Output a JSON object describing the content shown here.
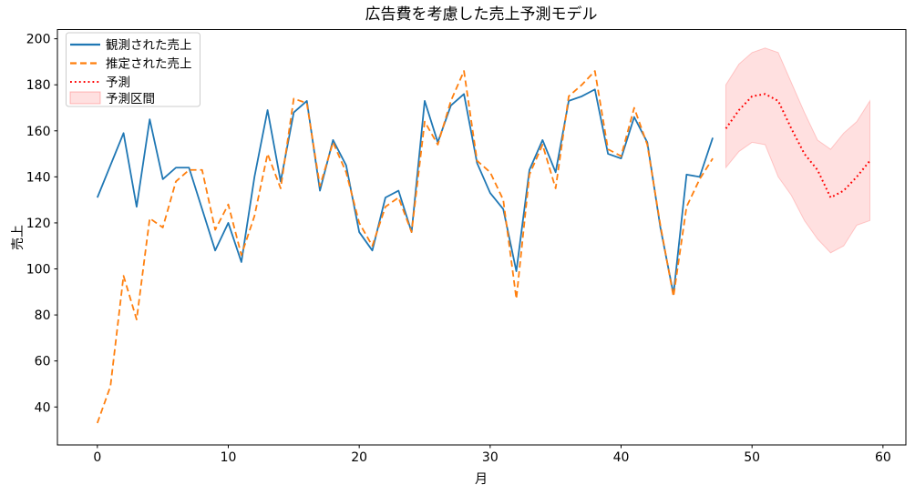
{
  "chart_data": {
    "type": "line",
    "title": "広告費を考慮した売上予測モデル",
    "xlabel": "月",
    "ylabel": "売上",
    "xlim": [
      -3.05,
      61.75
    ],
    "ylim": [
      23.5,
      204
    ],
    "xticks": [
      0,
      10,
      20,
      30,
      40,
      50,
      60
    ],
    "yticks": [
      40,
      60,
      80,
      100,
      120,
      140,
      160,
      180,
      200
    ],
    "grid": false,
    "legend_position": "upper left",
    "series": [
      {
        "name": "観測された売上",
        "type": "line",
        "style": "solid",
        "color": "#1f77b4",
        "x": [
          0,
          1,
          2,
          3,
          4,
          5,
          6,
          7,
          8,
          9,
          10,
          11,
          12,
          13,
          14,
          15,
          16,
          17,
          18,
          19,
          20,
          21,
          22,
          23,
          24,
          25,
          26,
          27,
          28,
          29,
          30,
          31,
          32,
          33,
          34,
          35,
          36,
          37,
          38,
          39,
          40,
          41,
          42,
          43,
          44,
          45,
          46,
          47
        ],
        "y": [
          131,
          145,
          159,
          127,
          165,
          139,
          144,
          144,
          126,
          108,
          120,
          103,
          140,
          169,
          138,
          168,
          173,
          134,
          156,
          145,
          116,
          108,
          131,
          134,
          116,
          173,
          155,
          171,
          176,
          146,
          133,
          126,
          99,
          143,
          156,
          142,
          173,
          175,
          178,
          150,
          148,
          166,
          155,
          118,
          89,
          141,
          140,
          157
        ]
      },
      {
        "name": "推定された売上",
        "type": "line",
        "style": "dashed",
        "color": "#ff7f0e",
        "x": [
          0,
          1,
          2,
          3,
          4,
          5,
          6,
          7,
          8,
          9,
          10,
          11,
          12,
          13,
          14,
          15,
          16,
          17,
          18,
          19,
          20,
          21,
          22,
          23,
          24,
          25,
          26,
          27,
          28,
          29,
          30,
          31,
          32,
          33,
          34,
          35,
          36,
          37,
          38,
          39,
          40,
          41,
          42,
          43,
          44,
          45,
          46,
          47
        ],
        "y": [
          33,
          49,
          97,
          78,
          122,
          118,
          138,
          143,
          143,
          117,
          128,
          106,
          123,
          150,
          135,
          174,
          172,
          136,
          155,
          142,
          120,
          110,
          127,
          131,
          116,
          164,
          154,
          173,
          186,
          147,
          142,
          130,
          87,
          141,
          154,
          135,
          175,
          180,
          186,
          152,
          149,
          170,
          154,
          119,
          88,
          127,
          139,
          148
        ]
      },
      {
        "name": "予測",
        "type": "line",
        "style": "dotted",
        "color": "#ff0000",
        "x": [
          48,
          49,
          50,
          51,
          52,
          53,
          54,
          55,
          56,
          57,
          58,
          59
        ],
        "y": [
          161,
          169,
          175,
          176,
          173,
          161,
          150,
          143,
          131,
          134,
          140,
          147
        ]
      },
      {
        "name": "予測区間",
        "type": "band",
        "style": "fill",
        "color": "#ff0000",
        "opacity": 0.12,
        "x": [
          48,
          49,
          50,
          51,
          52,
          53,
          54,
          55,
          56,
          57,
          58,
          59
        ],
        "y_upper": [
          180,
          189,
          194,
          196,
          194,
          181,
          168,
          156,
          152,
          159,
          164,
          173
        ],
        "y_lower": [
          144,
          151,
          155,
          154,
          140,
          132,
          121,
          113,
          107,
          110,
          119,
          121
        ]
      }
    ]
  }
}
